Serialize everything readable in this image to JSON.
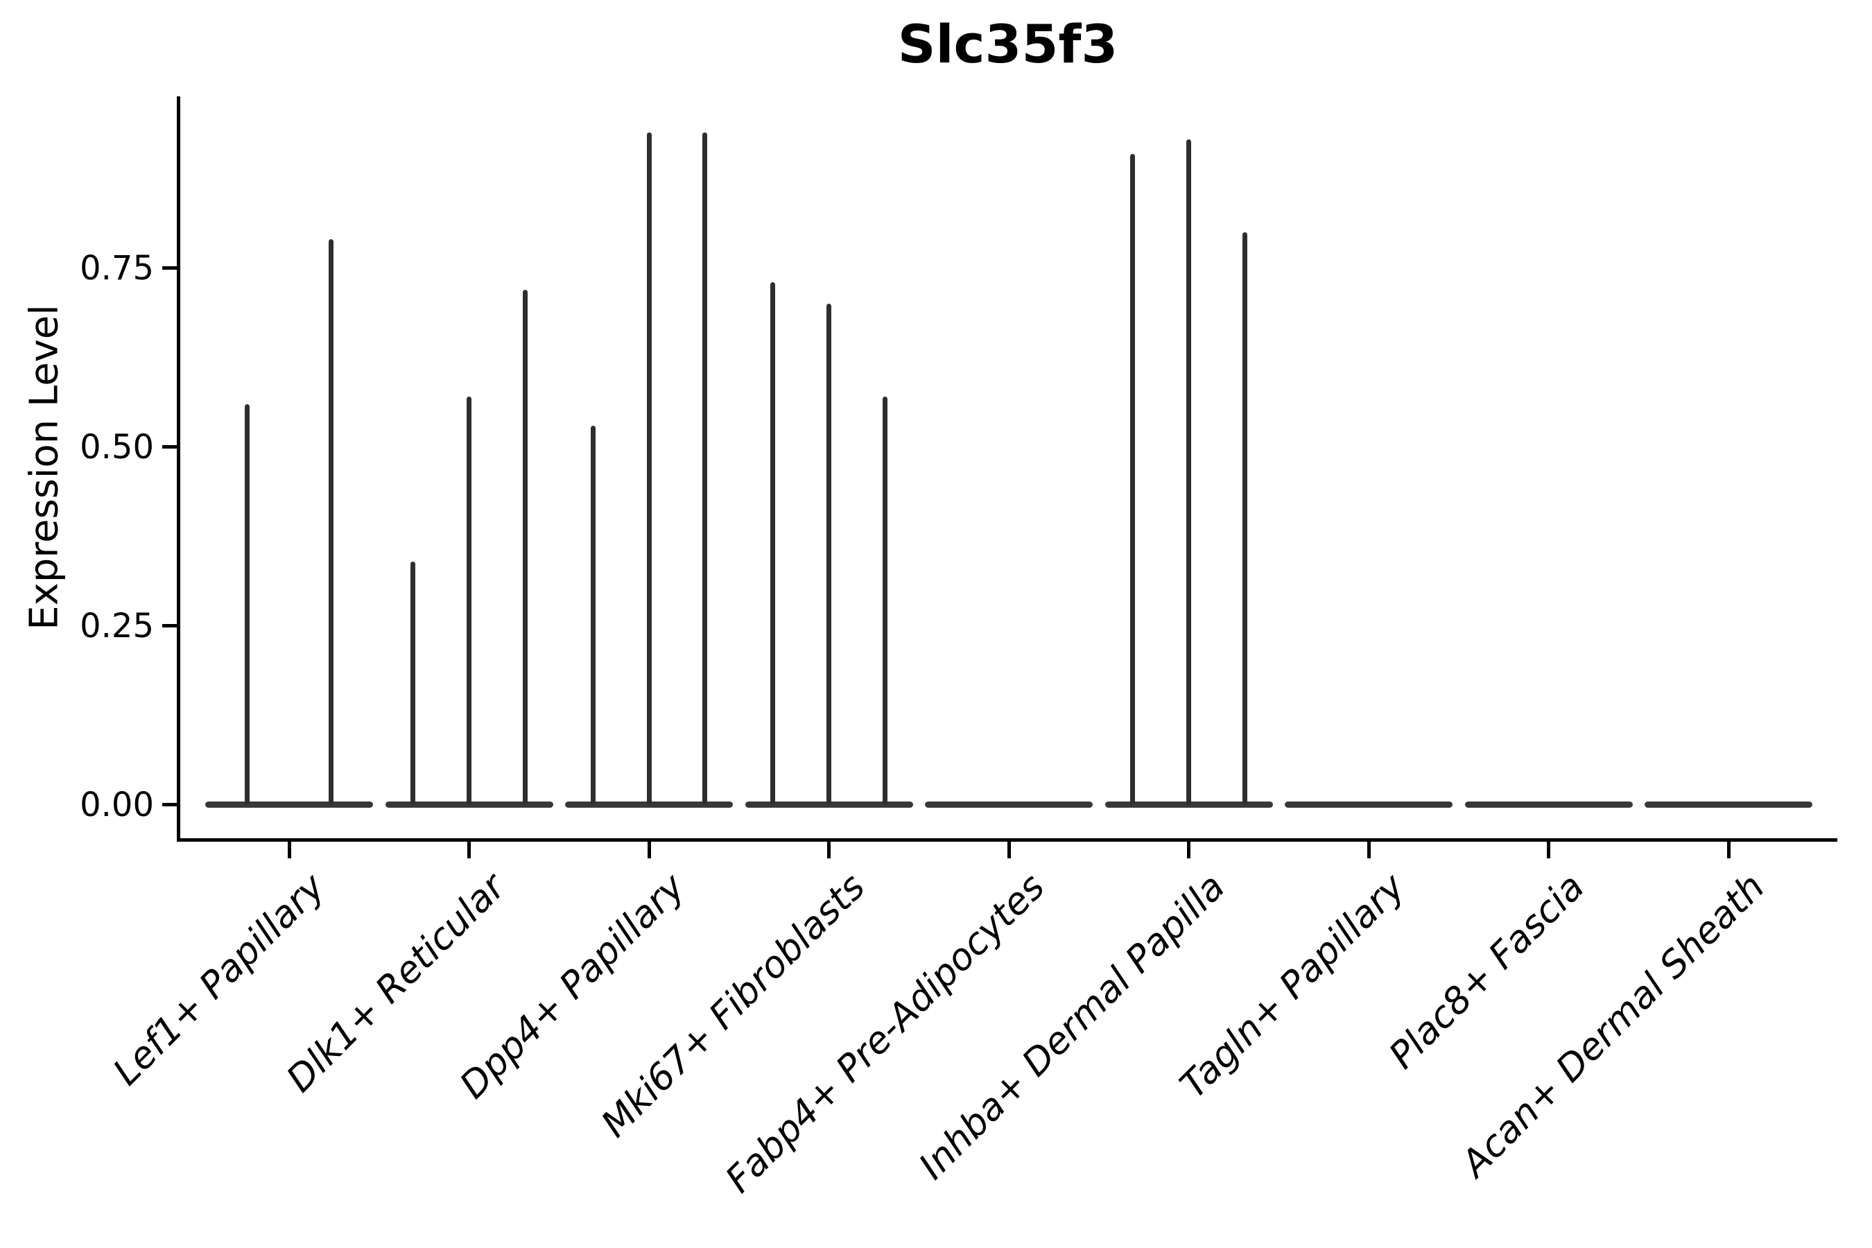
{
  "chart_data": {
    "type": "violin",
    "title": "Slc35f3",
    "xlabel": "",
    "ylabel": "Expression Level",
    "ylim": [
      -0.047,
      0.99
    ],
    "yticks": [
      "0.00",
      "0.25",
      "0.50",
      "0.75"
    ],
    "ytick_values": [
      0,
      0.25,
      0.5,
      0.75
    ],
    "grid": false,
    "legend": null,
    "background_color": "#ffffff",
    "axis_color": "#000000",
    "violin_line_color": "#2e2e2e",
    "categories": [
      {
        "label": "Lef1+ Papillary",
        "violin_max_expression": [
          0.56,
          0.79
        ]
      },
      {
        "label": "Dlk1+ Reticular",
        "violin_max_expression": [
          0.34,
          0.57,
          0.72
        ]
      },
      {
        "label": "Dpp4+ Papillary",
        "violin_max_expression": [
          0.53,
          0.94,
          0.94
        ]
      },
      {
        "label": "Mki67+ Fibroblasts",
        "violin_max_expression": [
          0.73,
          0.7,
          0.57
        ]
      },
      {
        "label": "Fabp4+ Pre-Adipocytes",
        "violin_max_expression": []
      },
      {
        "label": "Inhba+ Dermal Papilla",
        "violin_max_expression": [
          0.91,
          0.93,
          0.8
        ]
      },
      {
        "label": "Tagln+ Papillary",
        "violin_max_expression": []
      },
      {
        "label": "Plac8+ Fascia",
        "violin_max_expression": []
      },
      {
        "label": "Acan+ Dermal Sheath",
        "violin_max_expression": []
      }
    ]
  }
}
